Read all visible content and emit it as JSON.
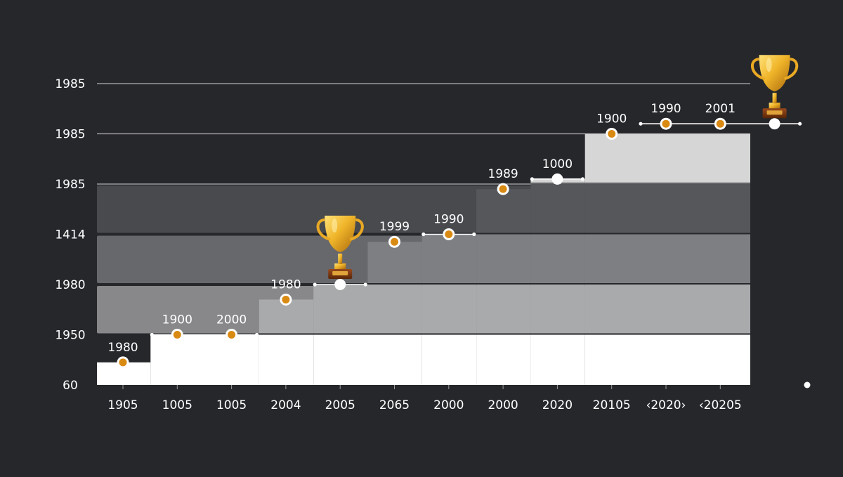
{
  "chart_data": {
    "type": "step",
    "title": "",
    "xlabel": "",
    "ylabel": "",
    "ylim": [
      0,
      6
    ],
    "grid": true,
    "colors": {
      "background": "#26272b",
      "marker": "#d98a12",
      "marker_ring": "#ffffff",
      "gridline": "#c9c9c9",
      "text": "#ffffff"
    },
    "y_ticks": [
      {
        "label": "60",
        "value": 0
      },
      {
        "label": "1950",
        "value": 1
      },
      {
        "label": "1980",
        "value": 2
      },
      {
        "label": "1414",
        "value": 3
      },
      {
        "label": "1985",
        "value": 4
      },
      {
        "label": "1985",
        "value": 5
      },
      {
        "label": "1985",
        "value": 6
      }
    ],
    "x_ticks": [
      "1905",
      "1005",
      "1005",
      "2004",
      "2005",
      "2065",
      "2000",
      "2000",
      "2020",
      "20105",
      "‹2020›",
      "‹20205"
    ],
    "bands": [
      {
        "from": 0,
        "to": 1,
        "color": "#ffffff"
      },
      {
        "from": 1,
        "to": 2,
        "color": "#a9aaac"
      },
      {
        "from": 2,
        "to": 3,
        "color": "#7d7f83"
      },
      {
        "from": 3,
        "to": 4,
        "color": "#55575b"
      },
      {
        "from": 4,
        "to": 5,
        "color": "#d6d6d6"
      }
    ],
    "steps": [
      {
        "x": 0,
        "x_end": 1,
        "level": 0.45
      },
      {
        "x": 1,
        "x_end": 3,
        "level": 1.0
      },
      {
        "x": 3,
        "x_end": 4,
        "level": 1.7
      },
      {
        "x": 4,
        "x_end": 5,
        "level": 2.0
      },
      {
        "x": 5,
        "x_end": 6,
        "level": 2.85
      },
      {
        "x": 6,
        "x_end": 7,
        "level": 3.0
      },
      {
        "x": 7,
        "x_end": 8,
        "level": 3.9
      },
      {
        "x": 8,
        "x_end": 9,
        "level": 4.1
      },
      {
        "x": 9,
        "x_end": 10,
        "level": 5.0
      },
      {
        "x": 10,
        "x_end": 12,
        "level": 5.2
      }
    ],
    "points": [
      {
        "x": 0,
        "y": 0.45,
        "label": "1980",
        "marker": "orange"
      },
      {
        "x": 1,
        "y": 1.0,
        "label": "1900",
        "marker": "orange"
      },
      {
        "x": 2,
        "y": 1.0,
        "label": "2000",
        "marker": "orange"
      },
      {
        "x": 3,
        "y": 1.7,
        "label": "1980",
        "marker": "orange"
      },
      {
        "x": 4,
        "y": 2.0,
        "label": "",
        "marker": "white"
      },
      {
        "x": 5,
        "y": 2.85,
        "label": "1999",
        "marker": "orange"
      },
      {
        "x": 6,
        "y": 3.0,
        "label": "1990",
        "marker": "orange"
      },
      {
        "x": 7,
        "y": 3.9,
        "label": "1989",
        "marker": "orange"
      },
      {
        "x": 8,
        "y": 4.1,
        "label": "1000",
        "marker": "white"
      },
      {
        "x": 9,
        "y": 5.0,
        "label": "1900",
        "marker": "orange"
      },
      {
        "x": 10,
        "y": 5.2,
        "label": "1990",
        "marker": "orange"
      },
      {
        "x": 11,
        "y": 5.2,
        "label": "2001",
        "marker": "orange"
      },
      {
        "x": 12,
        "y": 5.2,
        "label": "",
        "marker": "white"
      }
    ],
    "connectors": [
      {
        "from": 1,
        "to": 2
      },
      {
        "from": 4,
        "to": 4
      },
      {
        "from": 6,
        "to": 6
      },
      {
        "from": 8,
        "to": 8
      },
      {
        "from": 10,
        "to": 12
      }
    ],
    "trophies": [
      {
        "x": 4,
        "y": 2.0,
        "icon": "trophy-icon"
      },
      {
        "x": 12,
        "y": 5.2,
        "icon": "trophy-icon"
      }
    ],
    "end_marker": {
      "x": 12.6,
      "y": 0
    }
  }
}
